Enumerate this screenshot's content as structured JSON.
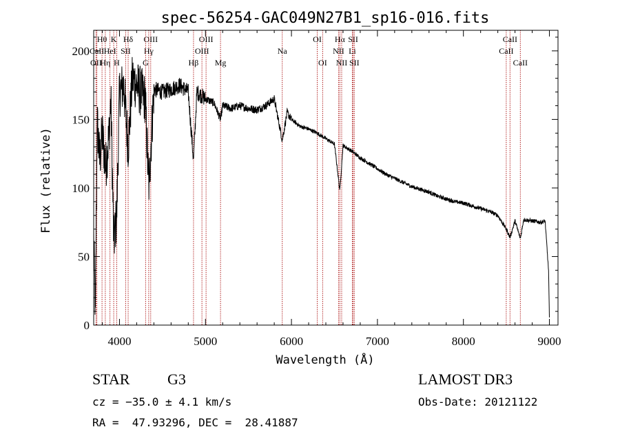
{
  "chart_data": {
    "type": "line",
    "title": "spec-56254-GAC049N27B1_sp16-016.fits",
    "xlabel": "Wavelength (Å)",
    "ylabel": "Flux (relative)",
    "xlim": [
      3700,
      9100
    ],
    "ylim": [
      0,
      215
    ],
    "x_ticks": [
      4000,
      5000,
      6000,
      7000,
      8000,
      9000
    ],
    "y_ticks": [
      0,
      50,
      100,
      150,
      200
    ],
    "x_tick_labels": [
      "4000",
      "5000",
      "6000",
      "7000",
      "8000",
      "9000"
    ],
    "y_tick_labels": [
      "0",
      "50",
      "100",
      "150",
      "200"
    ],
    "spectrum_anchors": [
      [
        3700,
        65
      ],
      [
        3720,
        5
      ],
      [
        3740,
        150
      ],
      [
        3770,
        120
      ],
      [
        3800,
        140
      ],
      [
        3840,
        115
      ],
      [
        3880,
        140
      ],
      [
        3900,
        165
      ],
      [
        3933,
        60
      ],
      [
        3968,
        80
      ],
      [
        4000,
        170
      ],
      [
        4050,
        175
      ],
      [
        4101,
        130
      ],
      [
        4150,
        180
      ],
      [
        4200,
        175
      ],
      [
        4250,
        170
      ],
      [
        4300,
        165
      ],
      [
        4340,
        100
      ],
      [
        4400,
        172
      ],
      [
        4500,
        170
      ],
      [
        4600,
        172
      ],
      [
        4700,
        175
      ],
      [
        4800,
        170
      ],
      [
        4861,
        120
      ],
      [
        4900,
        170
      ],
      [
        5000,
        165
      ],
      [
        5100,
        162
      ],
      [
        5175,
        150
      ],
      [
        5200,
        160
      ],
      [
        5300,
        158
      ],
      [
        5400,
        160
      ],
      [
        5500,
        158
      ],
      [
        5600,
        157
      ],
      [
        5700,
        160
      ],
      [
        5800,
        165
      ],
      [
        5893,
        135
      ],
      [
        5950,
        155
      ],
      [
        6000,
        150
      ],
      [
        6100,
        145
      ],
      [
        6200,
        143
      ],
      [
        6300,
        140
      ],
      [
        6400,
        136
      ],
      [
        6500,
        132
      ],
      [
        6563,
        98
      ],
      [
        6600,
        131
      ],
      [
        6700,
        127
      ],
      [
        6800,
        122
      ],
      [
        6900,
        118
      ],
      [
        7000,
        114
      ],
      [
        7100,
        110
      ],
      [
        7200,
        107
      ],
      [
        7300,
        104
      ],
      [
        7400,
        101
      ],
      [
        7500,
        99
      ],
      [
        7600,
        97
      ],
      [
        7700,
        94
      ],
      [
        7800,
        92
      ],
      [
        7900,
        90
      ],
      [
        8000,
        89
      ],
      [
        8100,
        87
      ],
      [
        8200,
        85
      ],
      [
        8300,
        83
      ],
      [
        8400,
        80
      ],
      [
        8498,
        70
      ],
      [
        8542,
        64
      ],
      [
        8600,
        76
      ],
      [
        8662,
        63
      ],
      [
        8700,
        77
      ],
      [
        8800,
        76
      ],
      [
        8900,
        75
      ],
      [
        8950,
        76
      ],
      [
        8990,
        40
      ],
      [
        9000,
        5
      ]
    ],
    "spectral_lines": [
      {
        "label": "Hθ",
        "wavelength": 3797,
        "row": 1
      },
      {
        "label": "OII",
        "wavelength": 3727,
        "row": 3
      },
      {
        "label": "CaII",
        "wavelength": 3737,
        "row": 2
      },
      {
        "label": "Hη",
        "wavelength": 3835,
        "row": 3
      },
      {
        "label": "HeI",
        "wavelength": 3889,
        "row": 2
      },
      {
        "label": "K",
        "wavelength": 3933,
        "row": 1
      },
      {
        "label": "H",
        "wavelength": 3968,
        "row": 3
      },
      {
        "label": "SII",
        "wavelength": 4072,
        "row": 2
      },
      {
        "label": "Hδ",
        "wavelength": 4101,
        "row": 1
      },
      {
        "label": "OIII",
        "wavelength": 4363,
        "row": 1
      },
      {
        "label": "Hγ",
        "wavelength": 4340,
        "row": 2
      },
      {
        "label": "G",
        "wavelength": 4304,
        "row": 3
      },
      {
        "label": "Hβ",
        "wavelength": 4861,
        "row": 3
      },
      {
        "label": "OIII",
        "wavelength": 5007,
        "row": 1
      },
      {
        "label": "OIII",
        "wavelength": 4959,
        "row": 2
      },
      {
        "label": "Mg",
        "wavelength": 5175,
        "row": 3
      },
      {
        "label": "Na",
        "wavelength": 5893,
        "row": 2
      },
      {
        "label": "OI",
        "wavelength": 6300,
        "row": 1
      },
      {
        "label": "OI",
        "wavelength": 6363,
        "row": 3
      },
      {
        "label": "Hα",
        "wavelength": 6563,
        "row": 1
      },
      {
        "label": "NII",
        "wavelength": 6548,
        "row": 2
      },
      {
        "label": "NII",
        "wavelength": 6584,
        "row": 3
      },
      {
        "label": "SII",
        "wavelength": 6717,
        "row": 1
      },
      {
        "label": "Li",
        "wavelength": 6708,
        "row": 2
      },
      {
        "label": "SII",
        "wavelength": 6731,
        "row": 3
      },
      {
        "label": "CaII",
        "wavelength": 8542,
        "row": 1
      },
      {
        "label": "CaII",
        "wavelength": 8498,
        "row": 2
      },
      {
        "label": "CaII",
        "wavelength": 8662,
        "row": 3
      }
    ]
  },
  "info": {
    "object_class": "STAR",
    "subclass": "G3",
    "survey": "LAMOST DR3",
    "cz": "cz = −35.0 ± 4.1 km/s",
    "obs_date": "Obs-Date: 20121122",
    "coords": "RA =  47.93296, DEC =  28.41887"
  }
}
